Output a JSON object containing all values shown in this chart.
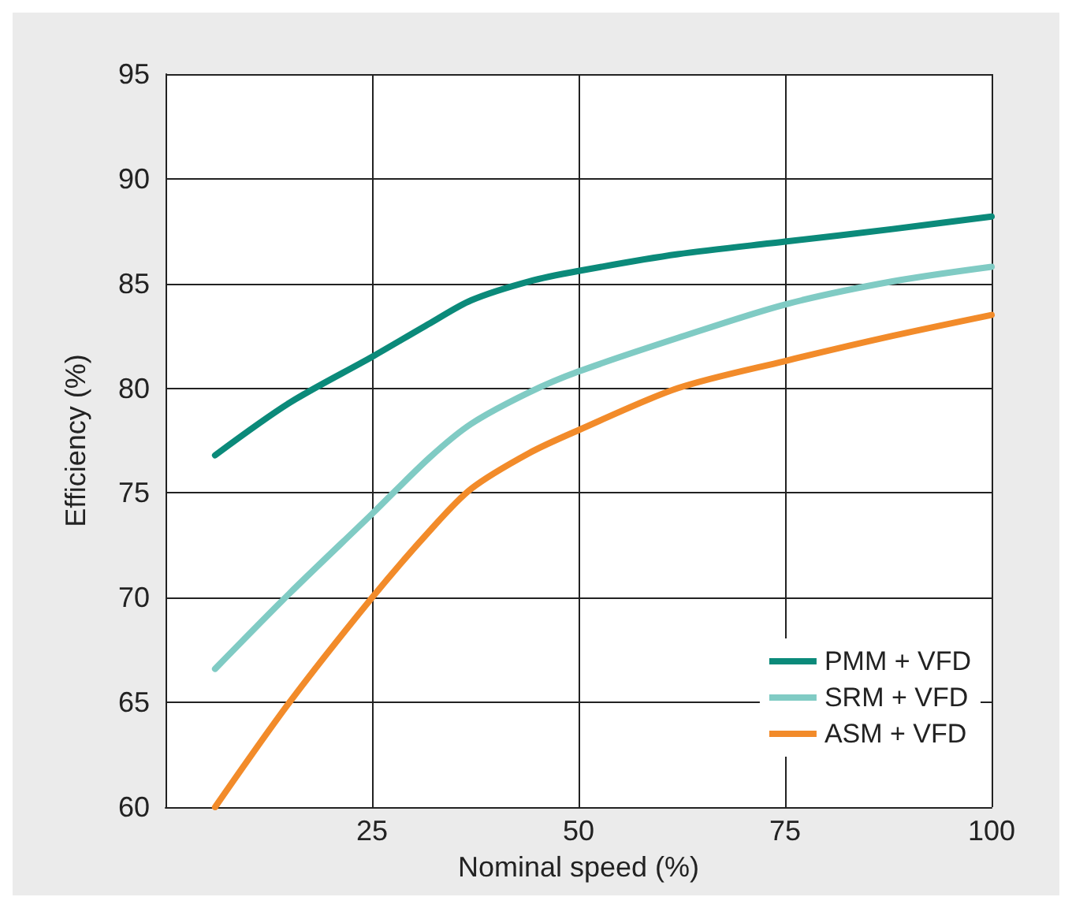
{
  "chart_data": {
    "type": "line",
    "xlabel": "Nominal speed (%)",
    "ylabel": "Efficiency (%)",
    "xlim": [
      0,
      100
    ],
    "xticks": [
      25,
      50,
      75,
      100
    ],
    "ylim": [
      60,
      95
    ],
    "yticks": [
      60,
      65,
      70,
      75,
      80,
      85,
      90,
      95
    ],
    "grid": true,
    "legend": "bottom right",
    "marker": "none",
    "line_style": "solid",
    "series": [
      {
        "name": "PMM + VFD",
        "color": "#0b8a7a",
        "x": [
          6,
          15,
          25,
          32,
          37,
          44,
          50,
          62,
          75,
          88,
          100
        ],
        "values": [
          76.8,
          79.3,
          81.5,
          83.1,
          84.2,
          85.1,
          85.6,
          86.4,
          87.0,
          87.6,
          88.2
        ]
      },
      {
        "name": "SRM + VFD",
        "color": "#80cbc4",
        "x": [
          6,
          15,
          25,
          32,
          37,
          44,
          50,
          62,
          75,
          88,
          100
        ],
        "values": [
          66.6,
          70.2,
          74,
          76.7,
          78.3,
          79.8,
          80.8,
          82.4,
          84,
          85.1,
          85.8
        ]
      },
      {
        "name": "ASM + VFD",
        "color": "#f28b2a",
        "x": [
          6,
          15,
          25,
          32,
          37,
          44,
          50,
          62,
          75,
          88,
          100
        ],
        "values": [
          60,
          65,
          70,
          73.2,
          75.2,
          76.9,
          78,
          80,
          81.3,
          82.5,
          83.5
        ]
      }
    ]
  }
}
